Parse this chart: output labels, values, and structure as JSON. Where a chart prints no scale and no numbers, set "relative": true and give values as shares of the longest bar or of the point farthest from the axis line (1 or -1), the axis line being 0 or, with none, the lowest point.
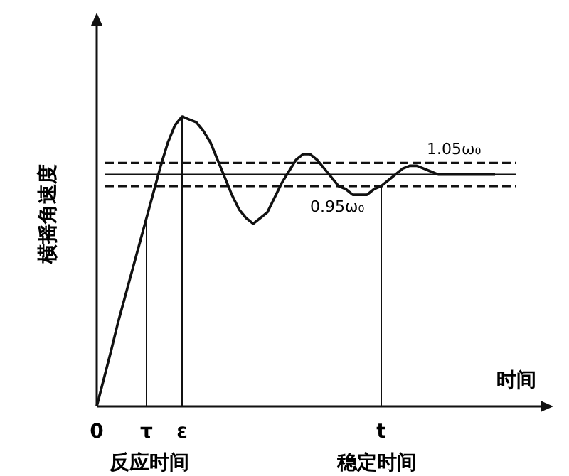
{
  "chart_data": {
    "type": "line",
    "relative": true,
    "xlabel": "时间",
    "ylabel": "横摇角速度",
    "categories": [
      "0",
      null,
      null,
      null,
      null,
      null,
      null,
      "τ",
      null,
      null,
      null,
      null,
      "ε",
      null,
      null,
      null,
      null,
      null,
      null,
      null,
      null,
      null,
      null,
      null,
      null,
      null,
      null,
      null,
      null,
      null,
      null,
      null,
      null,
      null,
      null,
      null,
      null,
      null,
      null,
      null,
      "t",
      null,
      null,
      null,
      null,
      null,
      null,
      null,
      null,
      null,
      null,
      null,
      null,
      null,
      null,
      null,
      null
    ],
    "series": [
      {
        "color": "#111111",
        "values": [
          0,
          0.095,
          0.19,
          0.29,
          0.38,
          0.47,
          0.56,
          0.65,
          0.74,
          0.83,
          0.91,
          0.97,
          1,
          0.99,
          0.98,
          0.95,
          0.91,
          0.85,
          0.79,
          0.73,
          0.68,
          0.65,
          0.63,
          0.65,
          0.67,
          0.72,
          0.77,
          0.81,
          0.85,
          0.87,
          0.87,
          0.85,
          0.82,
          0.79,
          0.76,
          0.75,
          0.73,
          0.73,
          0.73,
          0.75,
          0.76,
          0.78,
          0.8,
          0.82,
          0.83,
          0.83,
          0.82,
          0.81,
          0.8,
          0.8,
          0.8,
          0.8,
          0.8,
          0.8,
          0.8,
          0.8,
          0.8
        ]
      }
    ],
    "ref_lines": [
      {
        "axis": "y",
        "value": 0.84,
        "label": "1.05ω₀",
        "line_style": "dashed"
      },
      {
        "axis": "y",
        "value": 0.8,
        "label": null,
        "line_style": "solid"
      },
      {
        "axis": "y",
        "value": 0.76,
        "label": "0.95ω₀",
        "line_style": "dashed"
      },
      {
        "axis": "x",
        "value": "τ",
        "label": null
      },
      {
        "axis": "x",
        "value": "ε",
        "label": null
      },
      {
        "axis": "x",
        "value": "t",
        "label": null
      }
    ],
    "annotations": [
      "反应时间",
      "稳定时间"
    ]
  }
}
